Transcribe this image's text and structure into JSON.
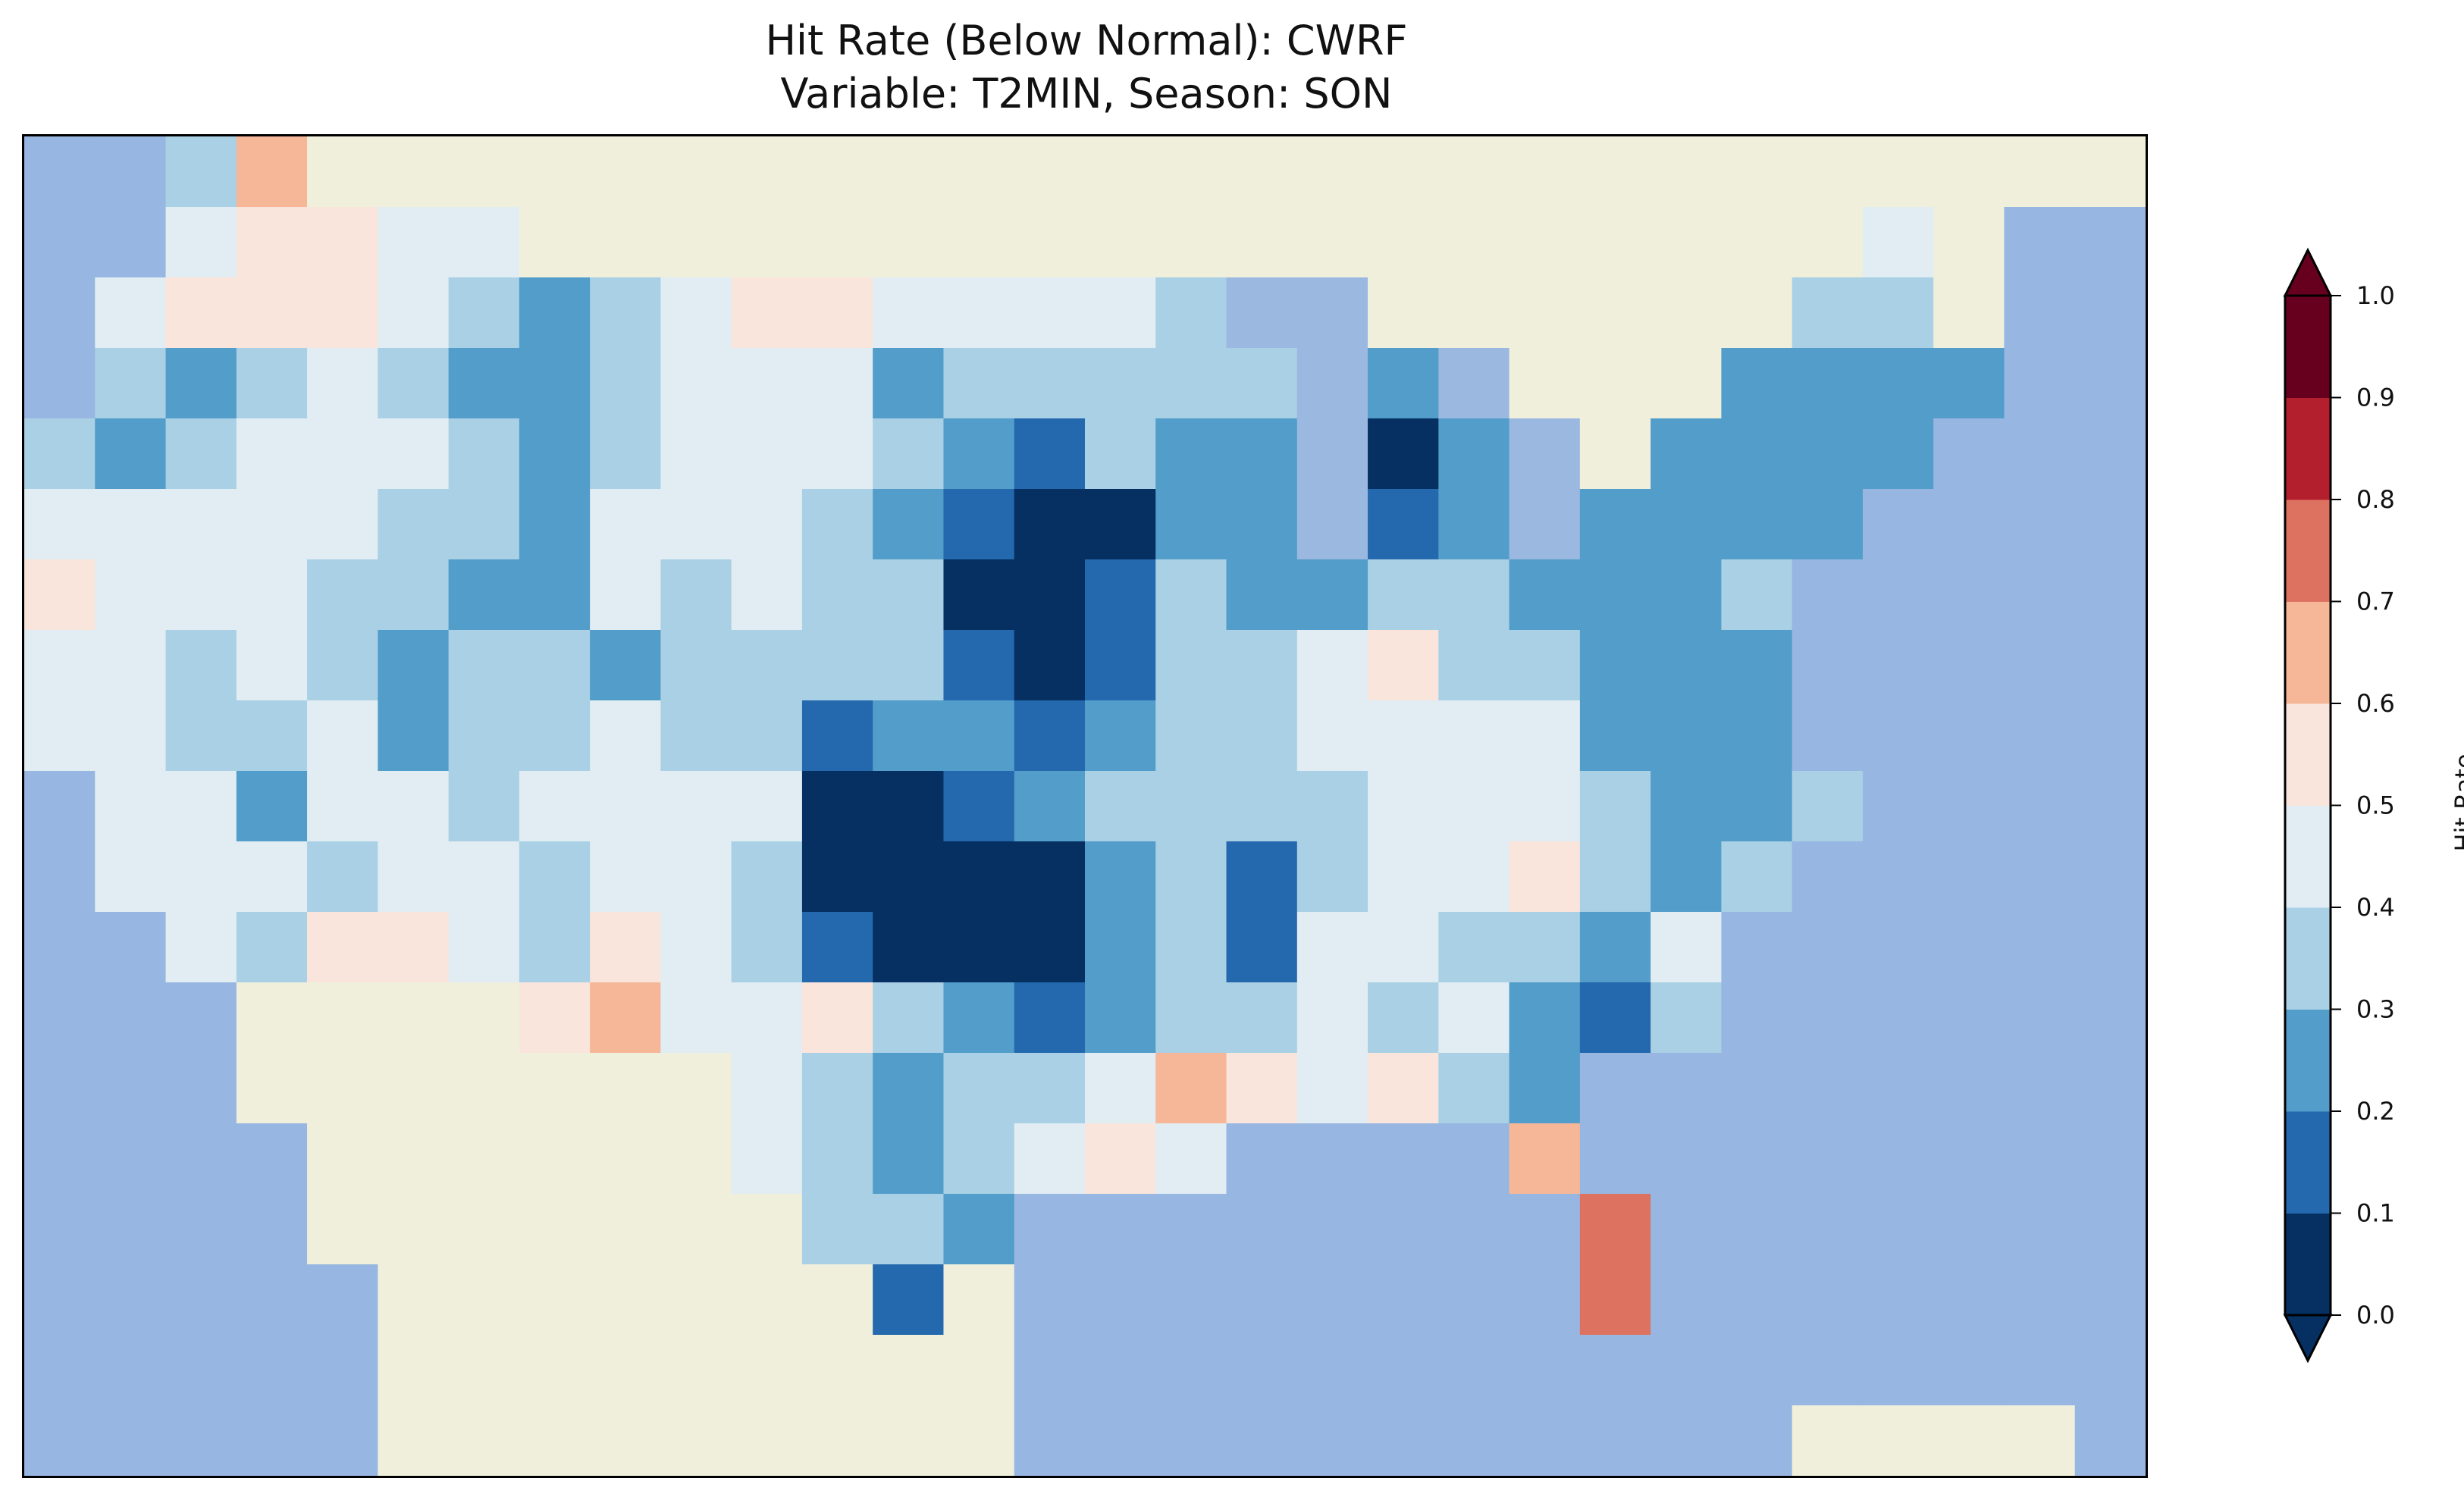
{
  "chart_data": {
    "type": "heatmap",
    "title_line1": "Hit Rate (Below Normal): CWRF",
    "title_line2": "Variable: T2MIN, Season: SON",
    "colorbar": {
      "label": "Hit Rate",
      "ticks": [
        "0.0",
        "0.1",
        "0.2",
        "0.3",
        "0.4",
        "0.5",
        "0.6",
        "0.7",
        "0.8",
        "0.9",
        "1.0"
      ],
      "levels": [
        0,
        0.1,
        0.2,
        0.3,
        0.4,
        0.5,
        0.6,
        0.7,
        0.8,
        0.9,
        1.0
      ],
      "extend": "both",
      "colors": [
        "#053061",
        "#2468ae",
        "#529dc9",
        "#a9d0e5",
        "#e1edf3",
        "#f9e5dc",
        "#f6b799",
        "#de7260",
        "#b41f2e",
        "#67001f"
      ]
    },
    "background": {
      "ocean": "#97b6e1",
      "land": "#efefdb",
      "lake": "#9ab8e0"
    },
    "grid_legend": "digit = hit-rate class index (0 = 0.0–0.1 … 9 = 0.9–1.0), o = ocean, l = land without data, w = lake",
    "grid": [
      "oo36llllllllllllllllllllllllll",
      "oo45544lllllllllllllllllll4loo",
      "o4555432345544443wwllllll33loo",
      "o32343223444233333w2wlll2222oo",
      "323444323444321322w02wl2222ooo",
      "444443324443210022w12w2222oooo",
      "5444332243433001322332223ooooo",
      "4434323323333101334533222ooooo",
      "4433423343312212334444222ooooo",
      "o4424434444001233334443223oooo",
      "o444344344300002313445323ooooo",
      "oo4355435431000231443324oooooo",
      "ooollll56445321233434213oooooo",
      "ooolllllll432334654532ooooooo",
      "oooollllll4323454oooo6oooooooo",
      "oooolllllll332oooooooo7ooooooo",
      "ooooolllllll1loooooooo7ooooooo",
      "ooooollllllllloooooooooooooooo",
      "ooooolllllllllooooooooooollllo"
    ]
  }
}
